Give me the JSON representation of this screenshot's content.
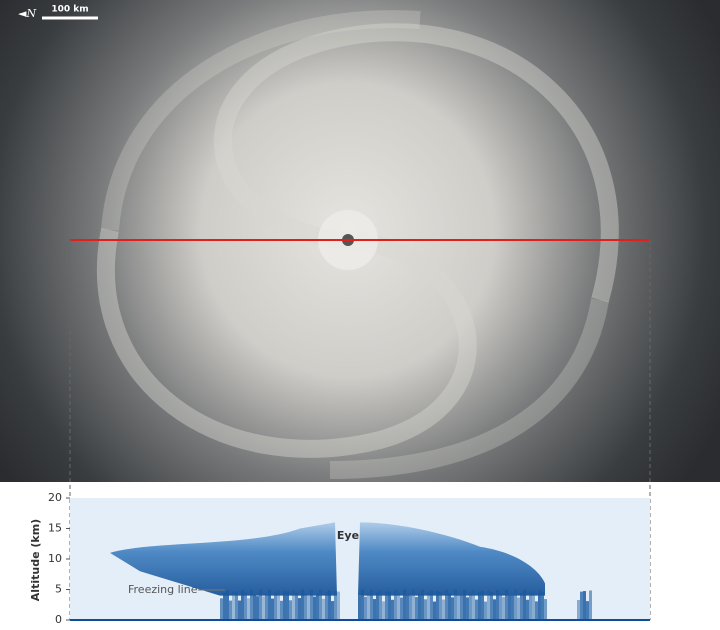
{
  "image": {
    "north_label": "N",
    "scale_label": "100 km"
  },
  "chart_data": {
    "type": "curtain",
    "ylabel": "Altitude (km)",
    "ylim": [
      0,
      20
    ],
    "yticks": [
      0,
      5,
      10,
      15,
      20
    ],
    "annotations": [
      "Eye",
      "Freezing line"
    ]
  }
}
